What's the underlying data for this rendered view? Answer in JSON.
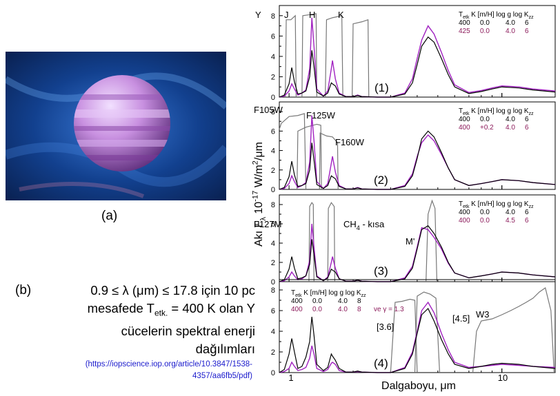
{
  "figure": {
    "label_a": "(a)",
    "label_b": "(b)",
    "caption_line1": "0.9 ≤  λ (μm) ≤  17.8 için 10 pc",
    "caption_line2": "mesafede T",
    "caption_line2_sub": "etk.",
    "caption_line2_rest": " = 400 K olan Y",
    "caption_line3": "cücelerin spektral enerji",
    "caption_line4": "dağılımları",
    "source_line1": "(https://iopscience.iop.org/article/10.3847/1538-",
    "source_line2": "4357/aa6fb5/pdf)"
  },
  "colors": {
    "model_a": "#000000",
    "model_b": "#a020c0",
    "model_b_text": "#8b1a5a",
    "filter": "#777777",
    "link": "#1a1acc",
    "planet_bg": "#0a2a6a",
    "planet": "#c890e0"
  },
  "axes": {
    "ylabel": "Akı F",
    "ylabel_sub": "λ",
    "ylabel_rest": " 10",
    "ylabel_exp": "-17",
    "ylabel_units": " W/m",
    "ylabel_exp2": "2",
    "ylabel_units2": "/μm",
    "xlabel": "Dalgaboyu, μm",
    "x_tick_labels": [
      "1",
      "10"
    ],
    "y_tick_labels": [
      "0",
      "2",
      "4",
      "6",
      "8"
    ]
  },
  "chart_data": [
    {
      "type": "line",
      "panel_label": "(1)",
      "x_scale": "log",
      "xlim": [
        0.9,
        17.8
      ],
      "ylim": [
        0,
        9
      ],
      "filter_labels": [
        "Y",
        "J",
        "H",
        "K"
      ],
      "legend": {
        "header": [
          "T",
          "etk",
          "K",
          "[m/H]",
          "log g",
          "log K",
          "zz"
        ],
        "rows": [
          [
            "400",
            "0.0",
            "4.0",
            "6"
          ],
          [
            "425",
            "0.0",
            "4.0",
            "6"
          ]
        ]
      },
      "filters": [
        {
          "name": "Y",
          "x": [
            0.96,
            0.97,
            1.02,
            1.07,
            1.08
          ],
          "y": [
            0,
            7.6,
            7.6,
            8.0,
            0
          ]
        },
        {
          "name": "J",
          "x": [
            1.15,
            1.16,
            1.25,
            1.34,
            1.35
          ],
          "y": [
            0,
            8.0,
            8.1,
            8.2,
            0
          ]
        },
        {
          "name": "H",
          "x": [
            1.48,
            1.5,
            1.6,
            1.77,
            1.79
          ],
          "y": [
            0,
            7.6,
            7.8,
            8.0,
            0
          ]
        },
        {
          "name": "K",
          "x": [
            1.98,
            2.0,
            2.2,
            2.35,
            2.37
          ],
          "y": [
            0,
            7.2,
            7.4,
            7.6,
            0
          ]
        }
      ],
      "series_a": {
        "x": [
          0.9,
          0.95,
          1.0,
          1.03,
          1.06,
          1.1,
          1.15,
          1.2,
          1.25,
          1.28,
          1.31,
          1.35,
          1.45,
          1.52,
          1.58,
          1.6,
          1.65,
          1.72,
          1.85,
          2.0,
          2.1,
          2.2,
          2.6,
          3.0,
          3.5,
          3.8,
          4.0,
          4.2,
          4.5,
          4.8,
          5.2,
          5.6,
          6.0,
          7.0,
          8.0,
          9.0,
          10.0,
          12.0,
          14.0,
          17.8
        ],
        "y": [
          0,
          0.2,
          1.3,
          2.9,
          1.5,
          0.3,
          0.4,
          0.6,
          2.0,
          4.6,
          3.0,
          0.5,
          0.1,
          0.4,
          1.4,
          1.3,
          1.1,
          0.3,
          0.05,
          0.05,
          0.15,
          0.05,
          0,
          0,
          0.3,
          1.4,
          3.2,
          5.0,
          5.9,
          5.4,
          3.8,
          2.2,
          1.0,
          0.35,
          0.55,
          0.8,
          1.0,
          0.9,
          0.7,
          0.5
        ]
      },
      "series_b": {
        "x": [
          0.9,
          0.95,
          1.0,
          1.03,
          1.06,
          1.1,
          1.15,
          1.2,
          1.25,
          1.28,
          1.31,
          1.35,
          1.45,
          1.52,
          1.58,
          1.6,
          1.65,
          1.72,
          1.85,
          2.0,
          2.1,
          2.2,
          2.6,
          3.0,
          3.5,
          3.8,
          4.0,
          4.2,
          4.5,
          4.8,
          5.2,
          5.6,
          6.0,
          7.0,
          8.0,
          9.0,
          10.0,
          12.0,
          14.0,
          17.8
        ],
        "y": [
          0,
          0.1,
          0.6,
          1.3,
          0.8,
          0.2,
          0.4,
          0.7,
          2.8,
          7.8,
          5.0,
          0.8,
          0.1,
          0.6,
          2.8,
          3.6,
          1.8,
          0.4,
          0.05,
          0.05,
          0.2,
          0.05,
          0,
          0,
          0.4,
          1.8,
          3.8,
          5.6,
          7.0,
          6.2,
          4.4,
          2.6,
          1.2,
          0.45,
          0.65,
          0.9,
          1.1,
          1.0,
          0.8,
          0.6
        ]
      }
    },
    {
      "type": "line",
      "panel_label": "(2)",
      "x_scale": "log",
      "xlim": [
        0.9,
        17.8
      ],
      "ylim": [
        0,
        9
      ],
      "filter_labels": [
        "F105W",
        "F125W",
        "F160W"
      ],
      "legend": {
        "header": [
          "T",
          "etk",
          "K",
          "[m/H]",
          "log g",
          "log K",
          "zz"
        ],
        "rows": [
          [
            "400",
            "0.0",
            "4.0",
            "6"
          ],
          [
            "400",
            "+0.2",
            "4.0",
            "6"
          ]
        ]
      },
      "filters": [
        {
          "name": "F105W",
          "x": [
            0.9,
            0.92,
            1.0,
            1.1,
            1.18,
            1.2
          ],
          "y": [
            6.2,
            6.8,
            7.5,
            7.6,
            7.8,
            0
          ]
        },
        {
          "name": "F125W",
          "x": [
            1.09,
            1.1,
            1.2,
            1.35,
            1.41,
            1.42
          ],
          "y": [
            0,
            6.0,
            6.4,
            6.7,
            6.6,
            0
          ]
        },
        {
          "name": "F160W",
          "x": [
            1.39,
            1.4,
            1.5,
            1.6,
            1.69,
            1.7
          ],
          "y": [
            0,
            5.8,
            5.5,
            5.4,
            4.8,
            0
          ]
        }
      ],
      "series_a": {
        "x": [
          0.9,
          0.95,
          1.0,
          1.03,
          1.06,
          1.1,
          1.15,
          1.2,
          1.25,
          1.28,
          1.31,
          1.35,
          1.45,
          1.52,
          1.58,
          1.6,
          1.65,
          1.72,
          1.85,
          2.0,
          2.1,
          2.2,
          2.6,
          3.0,
          3.5,
          3.8,
          4.0,
          4.2,
          4.5,
          4.8,
          5.2,
          5.6,
          6.0,
          7.0,
          8.0,
          9.0,
          10.0,
          12.0,
          14.0,
          17.8
        ],
        "y": [
          0,
          0.2,
          1.3,
          2.9,
          1.5,
          0.3,
          0.4,
          0.6,
          2.0,
          4.8,
          3.0,
          0.5,
          0.1,
          0.4,
          1.4,
          1.3,
          1.1,
          0.3,
          0.05,
          0.05,
          0.15,
          0.05,
          0,
          0,
          0.3,
          1.4,
          3.2,
          5.2,
          6.0,
          5.4,
          3.8,
          2.2,
          1.0,
          0.4,
          0.6,
          0.8,
          1.0,
          0.9,
          0.7,
          0.5
        ]
      },
      "series_b": {
        "x": [
          0.9,
          0.95,
          1.0,
          1.03,
          1.06,
          1.1,
          1.15,
          1.2,
          1.25,
          1.28,
          1.31,
          1.35,
          1.45,
          1.52,
          1.58,
          1.6,
          1.65,
          1.72,
          1.85,
          2.0,
          2.1,
          2.2,
          2.6,
          3.0,
          3.5,
          3.8,
          4.0,
          4.2,
          4.5,
          4.8,
          5.2,
          5.6,
          6.0,
          7.0,
          8.0,
          9.0,
          10.0,
          12.0,
          14.0,
          17.8
        ],
        "y": [
          0,
          0.1,
          0.6,
          1.4,
          0.8,
          0.2,
          0.4,
          0.7,
          2.8,
          7.6,
          5.0,
          0.8,
          0.1,
          0.6,
          2.7,
          3.4,
          1.8,
          0.4,
          0.05,
          0.05,
          0.2,
          0.05,
          0,
          0,
          0.4,
          1.6,
          3.4,
          4.8,
          5.6,
          5.0,
          3.6,
          2.2,
          1.0,
          0.4,
          0.6,
          0.8,
          1.0,
          0.9,
          0.7,
          0.5
        ]
      }
    },
    {
      "type": "line",
      "panel_label": "(3)",
      "x_scale": "log",
      "xlim": [
        0.9,
        17.8
      ],
      "ylim": [
        0,
        9
      ],
      "filter_labels": [
        "F127M",
        "CH",
        "4",
        " - kısa",
        "M'"
      ],
      "legend": {
        "header": [
          "T",
          "etk",
          "K",
          "[m/H]",
          "log g",
          "log K",
          "zz"
        ],
        "rows": [
          [
            "400",
            "0.0",
            "4.0",
            "6"
          ],
          [
            "400",
            "0.0",
            "4.5",
            "6"
          ]
        ]
      },
      "filters": [
        {
          "name": "F127M",
          "x": [
            1.24,
            1.25,
            1.28,
            1.3,
            1.31
          ],
          "y": [
            0,
            7.8,
            8.2,
            8.0,
            0
          ]
        },
        {
          "name": "CH4 - kısa",
          "x": [
            1.52,
            1.53,
            1.58,
            1.63,
            1.64
          ],
          "y": [
            0,
            7.6,
            8.2,
            7.8,
            0
          ]
        },
        {
          "name": "M'",
          "x": [
            4.4,
            4.5,
            4.7,
            4.85,
            4.95
          ],
          "y": [
            0,
            7.0,
            8.4,
            7.6,
            0
          ]
        }
      ],
      "series_a": {
        "x": [
          0.9,
          0.95,
          1.0,
          1.03,
          1.06,
          1.1,
          1.15,
          1.2,
          1.25,
          1.28,
          1.31,
          1.35,
          1.45,
          1.52,
          1.58,
          1.6,
          1.65,
          1.72,
          1.85,
          2.0,
          2.1,
          2.2,
          2.6,
          3.0,
          3.5,
          3.8,
          4.0,
          4.2,
          4.5,
          4.8,
          5.2,
          5.6,
          6.0,
          7.0,
          8.0,
          9.0,
          10.0,
          12.0,
          14.0,
          17.8
        ],
        "y": [
          0,
          0.2,
          1.3,
          2.6,
          1.4,
          0.3,
          0.4,
          0.6,
          1.8,
          4.4,
          2.8,
          0.5,
          0.1,
          0.4,
          1.3,
          1.2,
          1.0,
          0.3,
          0.05,
          0.05,
          0.15,
          0.05,
          0,
          0,
          0.3,
          1.4,
          3.4,
          5.4,
          5.8,
          5.0,
          3.6,
          2.0,
          0.9,
          0.4,
          0.6,
          0.8,
          1.0,
          0.9,
          0.7,
          0.5
        ]
      },
      "series_b": {
        "x": [
          0.9,
          0.95,
          1.0,
          1.03,
          1.06,
          1.1,
          1.15,
          1.2,
          1.25,
          1.28,
          1.31,
          1.35,
          1.45,
          1.52,
          1.58,
          1.6,
          1.65,
          1.72,
          1.85,
          2.0,
          2.1,
          2.2,
          2.6,
          3.0,
          3.5,
          3.8,
          4.0,
          4.2,
          4.5,
          4.8,
          5.2,
          5.6,
          6.0,
          7.0,
          8.0,
          9.0,
          10.0,
          12.0,
          14.0,
          17.8
        ],
        "y": [
          0,
          0.1,
          0.5,
          1.0,
          0.6,
          0.2,
          0.3,
          0.6,
          2.2,
          6.0,
          3.6,
          0.6,
          0.1,
          0.5,
          2.0,
          2.6,
          1.4,
          0.3,
          0.05,
          0.05,
          0.15,
          0.05,
          0,
          0,
          0.4,
          1.6,
          3.6,
          5.6,
          5.4,
          4.6,
          3.4,
          1.9,
          0.9,
          0.4,
          0.6,
          0.8,
          1.0,
          0.9,
          0.7,
          0.5
        ]
      }
    },
    {
      "type": "line",
      "panel_label": "(4)",
      "x_scale": "log",
      "xlim": [
        0.9,
        17.8
      ],
      "ylim": [
        0,
        9
      ],
      "filter_labels": [
        "[3.6]",
        "[4.5]",
        "W3"
      ],
      "legend": {
        "header": [
          "T",
          "etk",
          "K",
          "[m/H]",
          "log g",
          "log K",
          "zz"
        ],
        "rows": [
          [
            "400",
            "0.0",
            "4.0",
            "8",
            ""
          ],
          [
            "400",
            "0.0",
            "4.0",
            "8",
            "ve γ = 1.3"
          ]
        ]
      },
      "filters": [
        {
          "name": "[3.6]",
          "x": [
            3.0,
            3.15,
            3.4,
            3.7,
            3.9,
            4.0
          ],
          "y": [
            0,
            6.8,
            6.9,
            7.1,
            7.0,
            0
          ]
        },
        {
          "name": "[4.5]",
          "x": [
            3.9,
            4.0,
            4.3,
            4.6,
            4.9,
            5.1
          ],
          "y": [
            0,
            7.4,
            7.8,
            7.6,
            7.2,
            0
          ]
        },
        {
          "name": "W3",
          "x": [
            7.3,
            7.6,
            8.0,
            9.0,
            10.0,
            11.0,
            12.0,
            13.0,
            14.0,
            15.0,
            16.0,
            17.0,
            17.6
          ],
          "y": [
            0,
            4.0,
            5.0,
            5.2,
            5.6,
            6.0,
            6.4,
            6.8,
            7.2,
            7.8,
            8.2,
            6.0,
            0
          ]
        }
      ],
      "series_a": {
        "x": [
          0.9,
          0.95,
          1.0,
          1.03,
          1.06,
          1.1,
          1.15,
          1.2,
          1.25,
          1.28,
          1.31,
          1.35,
          1.45,
          1.52,
          1.58,
          1.6,
          1.65,
          1.72,
          1.85,
          2.0,
          2.1,
          2.2,
          2.6,
          3.0,
          3.5,
          3.8,
          4.0,
          4.2,
          4.5,
          4.8,
          5.2,
          5.6,
          6.0,
          7.0,
          8.0,
          9.0,
          10.0,
          12.0,
          14.0,
          17.8
        ],
        "y": [
          0,
          0.3,
          1.8,
          3.3,
          2.0,
          0.4,
          0.6,
          1.5,
          3.0,
          5.4,
          3.6,
          0.8,
          0.2,
          0.5,
          1.8,
          1.6,
          1.2,
          0.4,
          0.05,
          0.05,
          0.15,
          0.05,
          0,
          0,
          0.4,
          1.8,
          3.8,
          5.6,
          6.2,
          5.0,
          3.2,
          1.8,
          0.8,
          0.4,
          0.6,
          0.8,
          0.9,
          0.8,
          0.6,
          0.4
        ]
      },
      "series_b": {
        "x": [
          0.9,
          0.95,
          1.0,
          1.03,
          1.06,
          1.1,
          1.15,
          1.2,
          1.25,
          1.28,
          1.31,
          1.35,
          1.45,
          1.52,
          1.58,
          1.6,
          1.65,
          1.72,
          1.85,
          2.0,
          2.1,
          2.2,
          2.6,
          3.0,
          3.5,
          3.8,
          4.0,
          4.2,
          4.5,
          4.8,
          5.2,
          5.6,
          6.0,
          7.0,
          8.0,
          9.0,
          10.0,
          12.0,
          14.0,
          17.8
        ],
        "y": [
          0,
          0.1,
          0.4,
          1.0,
          0.6,
          0.2,
          0.3,
          0.5,
          1.4,
          2.6,
          1.8,
          0.4,
          0.1,
          0.3,
          0.9,
          1.0,
          0.8,
          0.2,
          0.05,
          0.05,
          0.1,
          0.05,
          0,
          0,
          0.5,
          2.0,
          4.0,
          6.0,
          6.8,
          5.8,
          3.8,
          2.2,
          1.0,
          0.5,
          0.6,
          0.7,
          0.8,
          0.7,
          0.6,
          0.5
        ]
      }
    }
  ]
}
